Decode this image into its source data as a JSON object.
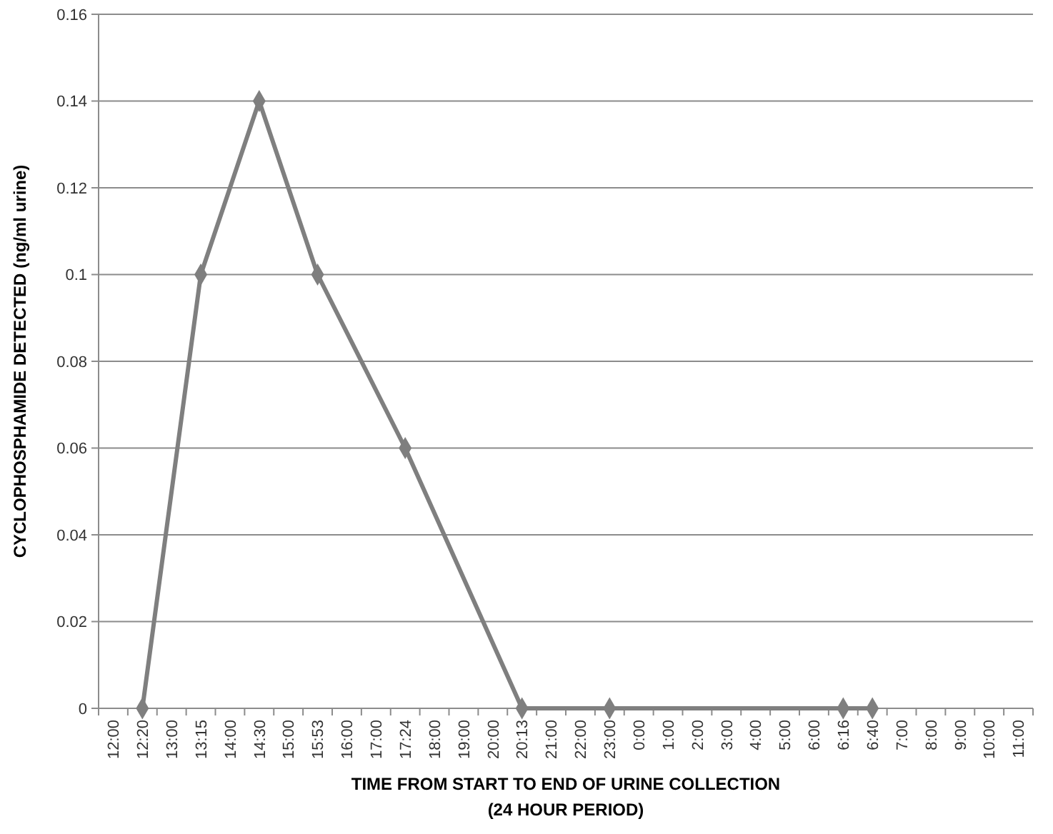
{
  "chart_data": {
    "type": "line",
    "ylabel": "CYCLOPHOSPHAMIDE DETECTED  (ng/ml urine)",
    "xlabel": "TIME FROM START TO END OF URINE COLLECTION\n(24 HOUR PERIOD)",
    "categories": [
      "12:00",
      "12:20",
      "13:00",
      "13:15",
      "14:00",
      "14:30",
      "15:00",
      "15:53",
      "16:00",
      "17:00",
      "17:24",
      "18:00",
      "19:00",
      "20:00",
      "20:13",
      "21:00",
      "22:00",
      "23:00",
      "0:00",
      "1:00",
      "2:00",
      "3:00",
      "4:00",
      "5:00",
      "6:00",
      "6:16",
      "6:40",
      "7:00",
      "8:00",
      "9:00",
      "10:00",
      "11:00"
    ],
    "series": [
      {
        "color": "#7f7f7f",
        "values": [
          null,
          0,
          null,
          0.1,
          null,
          0.14,
          null,
          0.1,
          null,
          null,
          0.06,
          null,
          null,
          null,
          0,
          null,
          null,
          0,
          null,
          null,
          null,
          null,
          null,
          null,
          null,
          0,
          0,
          null,
          null,
          null,
          null,
          null
        ]
      }
    ],
    "ylim": [
      0,
      0.16
    ],
    "yticks": [
      0,
      0.02,
      0.04,
      0.06,
      0.08,
      0.1,
      0.12,
      0.14,
      0.16
    ],
    "grid": "y",
    "marker": "diamond",
    "line_style": "solid"
  }
}
